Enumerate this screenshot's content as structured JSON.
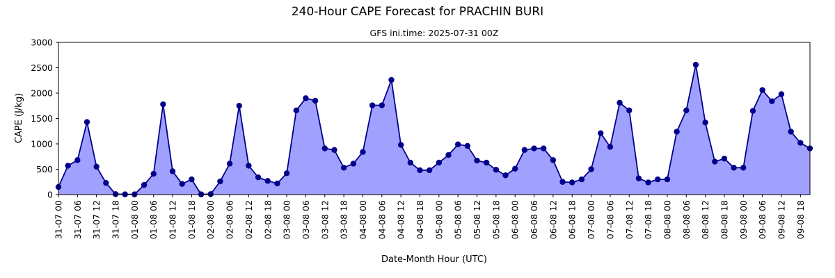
{
  "chart_data": {
    "type": "line",
    "title": "240-Hour CAPE Forecast for PRACHIN BURI",
    "subtitle": "GFS ini.time: 2025-07-31 00Z",
    "xlabel": "Date-Month Hour (UTC)",
    "ylabel": "CAPE (J/kg)",
    "ylim": [
      0,
      3000
    ],
    "yticks": [
      0,
      500,
      1000,
      1500,
      2000,
      2500,
      3000
    ],
    "xticks": [
      "31-07 00",
      "31-07 06",
      "31-07 12",
      "31-07 18",
      "01-08 00",
      "01-08 06",
      "01-08 12",
      "01-08 18",
      "02-08 00",
      "02-08 06",
      "02-08 12",
      "02-08 18",
      "03-08 00",
      "03-08 06",
      "03-08 12",
      "03-08 18",
      "04-08 00",
      "04-08 06",
      "04-08 12",
      "04-08 18",
      "05-08 00",
      "05-08 06",
      "05-08 12",
      "05-08 18",
      "06-08 00",
      "06-08 06",
      "06-08 12",
      "06-08 18",
      "07-08 00",
      "07-08 06",
      "07-08 12",
      "07-08 18",
      "08-08 00",
      "08-08 06",
      "08-08 12",
      "08-08 18",
      "09-08 00",
      "09-08 06",
      "09-08 12",
      "09-08 18"
    ],
    "x_step_hours": 3,
    "grid": false,
    "fill": true,
    "colors": {
      "line": "#00008b",
      "fill": "#a0a0ff",
      "marker": "#00008b"
    },
    "values": [
      150,
      570,
      680,
      1430,
      550,
      230,
      10,
      5,
      5,
      190,
      410,
      1780,
      460,
      210,
      300,
      5,
      10,
      260,
      610,
      1750,
      570,
      340,
      270,
      220,
      420,
      1660,
      1900,
      1850,
      910,
      880,
      530,
      610,
      840,
      1760,
      1760,
      2260,
      980,
      630,
      480,
      480,
      630,
      780,
      990,
      960,
      670,
      630,
      490,
      380,
      510,
      880,
      910,
      910,
      680,
      250,
      240,
      300,
      500,
      1210,
      940,
      1810,
      1660,
      320,
      240,
      300,
      300,
      1240,
      1660,
      2560,
      1420,
      650,
      710,
      530,
      530,
      1650,
      2060,
      1840,
      1980,
      1240,
      1020,
      910
    ]
  }
}
